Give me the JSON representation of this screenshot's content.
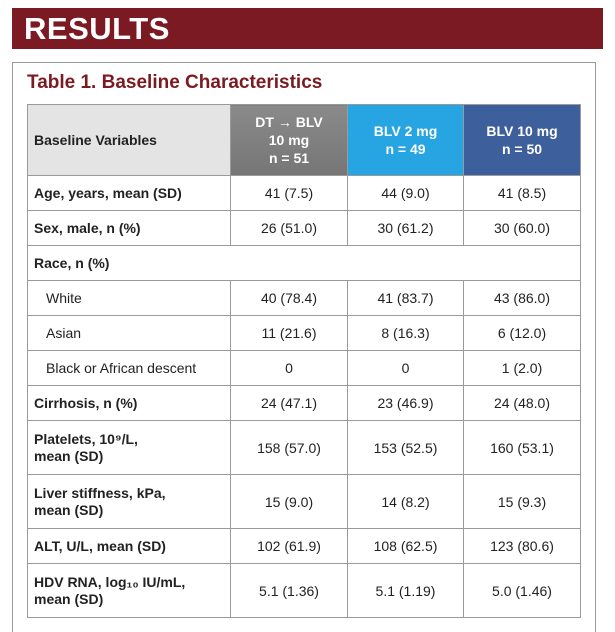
{
  "header": {
    "title": "RESULTS"
  },
  "table": {
    "title": "Table 1. Baseline Characteristics",
    "columns": [
      {
        "label": [
          "Baseline Variables"
        ],
        "color": "#e4e4e4"
      },
      {
        "label": [
          "DT → BLV",
          "10 mg",
          "n = 51"
        ],
        "color": "#767676"
      },
      {
        "label": [
          "BLV 2 mg",
          "n = 49"
        ],
        "color": "#27a4e2"
      },
      {
        "label": [
          "BLV 10 mg",
          "n = 50"
        ],
        "color": "#3d5f9c"
      }
    ],
    "rows": [
      {
        "label": [
          "Age, years, mean (SD)"
        ],
        "cells": [
          "41 (7.5)",
          "44 (9.0)",
          "41 (8.5)"
        ]
      },
      {
        "label": [
          "Sex, male, n (%)"
        ],
        "cells": [
          "26 (51.0)",
          "30 (61.2)",
          "30 (60.0)"
        ]
      },
      {
        "label": [
          "Race, n (%)"
        ],
        "subrows": [
          {
            "label": [
              "White"
            ],
            "cells": [
              "40 (78.4)",
              "41 (83.7)",
              "43 (86.0)"
            ]
          },
          {
            "label": [
              "Asian"
            ],
            "cells": [
              "11 (21.6)",
              "8 (16.3)",
              "6 (12.0)"
            ]
          },
          {
            "label": [
              "Black or African descent"
            ],
            "cells": [
              "0",
              "0",
              "1 (2.0)"
            ]
          }
        ]
      },
      {
        "label": [
          "Cirrhosis, n (%)"
        ],
        "cells": [
          "24 (47.1)",
          "23 (46.9)",
          "24 (48.0)"
        ]
      },
      {
        "label": [
          "Platelets, 10⁹/L,",
          "mean (SD)"
        ],
        "cells": [
          "158 (57.0)",
          "153 (52.5)",
          "160 (53.1)"
        ]
      },
      {
        "label": [
          "Liver stiffness, kPa,",
          "mean (SD)"
        ],
        "cells": [
          "15 (9.0)",
          "14 (8.2)",
          "15 (9.3)"
        ]
      },
      {
        "label": [
          "ALT, U/L, mean (SD)"
        ],
        "cells": [
          "102 (61.9)",
          "108 (62.5)",
          "123 (80.6)"
        ]
      },
      {
        "label": [
          "HDV RNA, log₁₀ IU/mL,",
          "mean (SD)"
        ],
        "cells": [
          "5.1 (1.36)",
          "5.1 (1.19)",
          "5.0 (1.46)"
        ]
      }
    ]
  }
}
